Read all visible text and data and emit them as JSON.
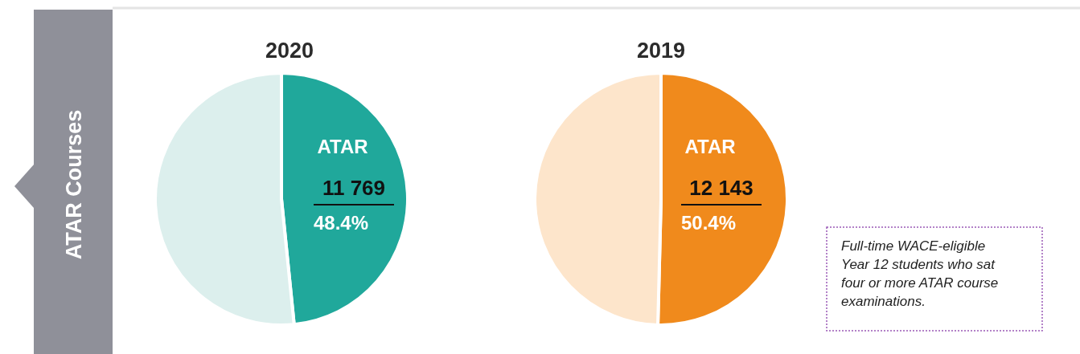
{
  "chart_data": [
    {
      "type": "pie",
      "title": "2020",
      "categories": [
        "ATAR",
        null
      ],
      "values": [
        48.4,
        51.6
      ],
      "colors": [
        "#20a89b",
        "#dcefed"
      ],
      "value_labels": [
        "48.4%",
        null
      ],
      "annotations": [
        "11 769"
      ]
    },
    {
      "type": "pie",
      "title": "2019",
      "categories": [
        "ATAR",
        null
      ],
      "values": [
        50.4,
        49.6
      ],
      "colors": [
        "#f08a1c",
        "#fde5cb"
      ],
      "value_labels": [
        "50.4%",
        null
      ],
      "annotations": [
        "12 143"
      ]
    },
    {
      "type": "other",
      "title": "ATAR Courses",
      "annotations": [
        "Full-time WACE-eligible Year 12 students who sat four or more ATAR course examinations."
      ]
    }
  ]
}
